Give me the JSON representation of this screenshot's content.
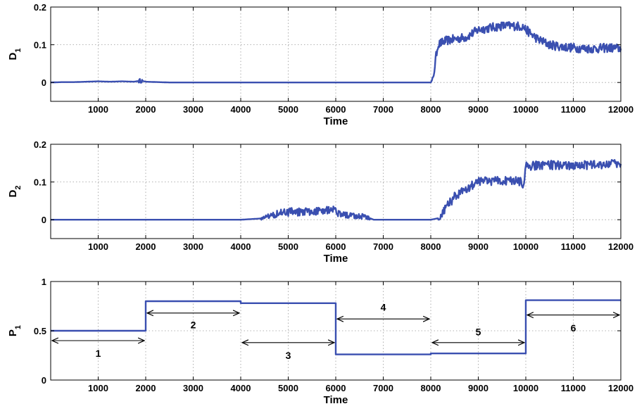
{
  "chart_data": [
    {
      "type": "line",
      "xlabel": "Time",
      "ylabel": "D",
      "ylabel_sub": "1",
      "xlim": [
        0,
        12000
      ],
      "ylim": [
        -0.05,
        0.2
      ],
      "xticks": [
        "1000",
        "2000",
        "3000",
        "4000",
        "5000",
        "6000",
        "7000",
        "8000",
        "9000",
        "10000",
        "11000",
        "12000"
      ],
      "yticks": [
        "0",
        "0.1",
        "0.2"
      ],
      "grid": true,
      "color": "#3a4fb0",
      "series": [
        {
          "x": [
            0,
            250,
            500,
            750,
            1000,
            1250,
            1500,
            1750,
            1900,
            2000,
            2250,
            2500,
            4000,
            6000,
            8000,
            8050,
            8100,
            8150,
            8300,
            8500,
            8750,
            9000,
            9250,
            9500,
            9750,
            9950,
            10000,
            10250,
            10500,
            10750,
            11000,
            11250,
            11500,
            11750,
            12000
          ],
          "y": [
            0,
            0.001,
            0.001,
            0.002,
            0.003,
            0.002,
            0.003,
            0.002,
            0.005,
            0.002,
            0.001,
            0,
            0,
            0,
            0,
            0.01,
            0.06,
            0.1,
            0.11,
            0.115,
            0.12,
            0.14,
            0.145,
            0.15,
            0.15,
            0.148,
            0.14,
            0.115,
            0.1,
            0.095,
            0.092,
            0.09,
            0.09,
            0.092,
            0.09
          ]
        }
      ]
    },
    {
      "type": "line",
      "xlabel": "Time",
      "ylabel": "D",
      "ylabel_sub": "2",
      "xlim": [
        0,
        12000
      ],
      "ylim": [
        -0.05,
        0.2
      ],
      "xticks": [
        "1000",
        "2000",
        "3000",
        "4000",
        "5000",
        "6000",
        "7000",
        "8000",
        "9000",
        "10000",
        "11000",
        "12000"
      ],
      "yticks": [
        "0",
        "0.1",
        "0.2"
      ],
      "grid": true,
      "color": "#3a4fb0",
      "series": [
        {
          "x": [
            0,
            4000,
            4400,
            4600,
            4800,
            5000,
            5500,
            5900,
            6000,
            6200,
            6500,
            6700,
            6800,
            8000,
            8200,
            8300,
            8500,
            8700,
            9000,
            9500,
            9900,
            9950,
            10000,
            10250,
            10500,
            11000,
            11500,
            12000
          ],
          "y": [
            0,
            0,
            0.003,
            0.01,
            0.018,
            0.02,
            0.022,
            0.028,
            0.02,
            0.012,
            0.01,
            0.005,
            0,
            0,
            0.005,
            0.03,
            0.06,
            0.08,
            0.1,
            0.105,
            0.1,
            0.085,
            0.14,
            0.145,
            0.145,
            0.145,
            0.145,
            0.148
          ]
        }
      ]
    },
    {
      "type": "line",
      "xlabel": "Time",
      "ylabel": "P",
      "ylabel_sub": "1",
      "xlim": [
        0,
        12000
      ],
      "ylim": [
        0,
        1
      ],
      "xticks": [
        "1000",
        "2000",
        "3000",
        "4000",
        "5000",
        "6000",
        "7000",
        "8000",
        "9000",
        "10000",
        "11000",
        "12000"
      ],
      "yticks": [
        "0",
        "0.5",
        "1"
      ],
      "grid": true,
      "color": "#3a4fb0",
      "series": [
        {
          "x": [
            0,
            2000,
            2000,
            4000,
            4000,
            6000,
            6000,
            8000,
            8000,
            10000,
            10000,
            12000
          ],
          "y": [
            0.5,
            0.5,
            0.8,
            0.8,
            0.78,
            0.78,
            0.26,
            0.26,
            0.27,
            0.27,
            0.81,
            0.81
          ]
        }
      ],
      "annotations": [
        {
          "label": "1",
          "x_start": 0,
          "x_end": 2000,
          "y_arrow": 0.4,
          "y_label": 0.27
        },
        {
          "label": "2",
          "x_start": 2000,
          "x_end": 4000,
          "y_arrow": 0.68,
          "y_label": 0.56
        },
        {
          "label": "3",
          "x_start": 4000,
          "x_end": 6000,
          "y_arrow": 0.38,
          "y_label": 0.25
        },
        {
          "label": "4",
          "x_start": 6000,
          "x_end": 8000,
          "y_arrow": 0.62,
          "y_label": 0.74
        },
        {
          "label": "5",
          "x_start": 8000,
          "x_end": 10000,
          "y_arrow": 0.38,
          "y_label": 0.49
        },
        {
          "label": "6",
          "x_start": 10000,
          "x_end": 12000,
          "y_arrow": 0.66,
          "y_label": 0.53
        }
      ]
    }
  ]
}
